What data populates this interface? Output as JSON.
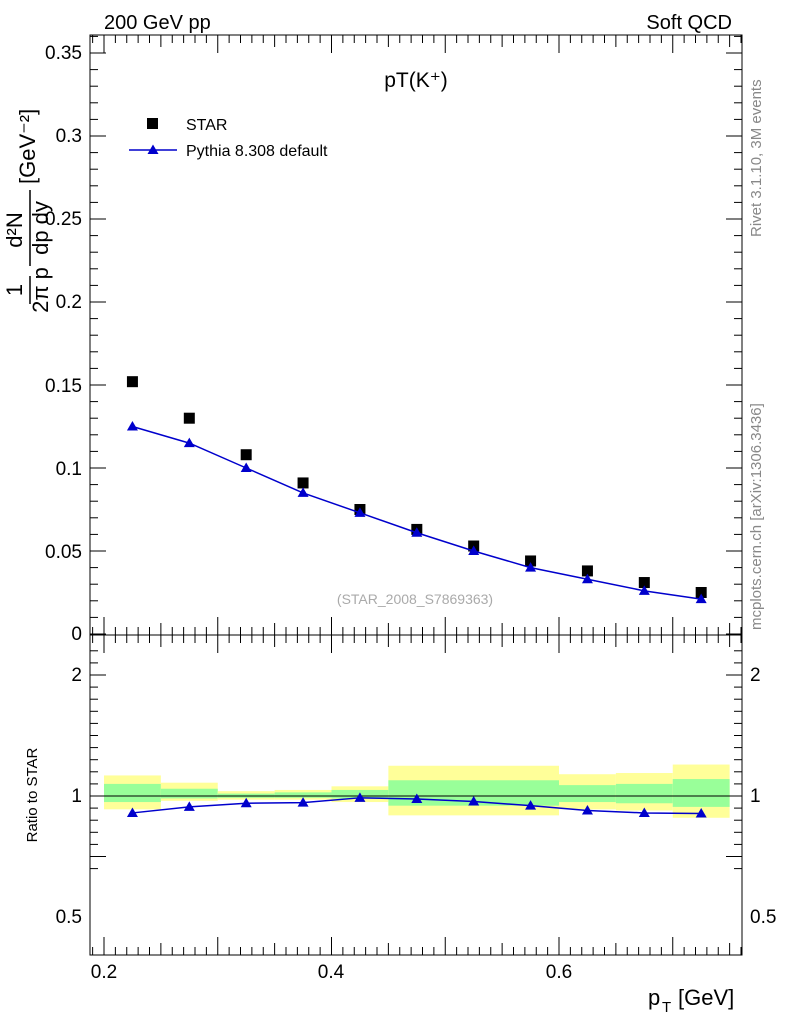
{
  "header": {
    "left": "200 GeV pp",
    "right": "Soft QCD"
  },
  "side_labels": {
    "rivet": "Rivet 3.1.10,  3M events",
    "mcplots": "mcplots.cern.ch [arXiv:1306.3436]"
  },
  "chart_data": [
    {
      "type": "scatter",
      "title": "pT(K⁺)",
      "watermark": "(STAR_2008_S7869363)",
      "ylabel_parts": {
        "lhs": "1",
        "frac_den": "2π p",
        "num": "d²N",
        "den": "dp  dy",
        "unit": "[GeV⁻²]"
      },
      "ylim": [
        0,
        0.36
      ],
      "xlim": [
        0.18,
        0.76
      ],
      "y_ticks": [
        "0",
        "0.05",
        "0.1",
        "0.15",
        "0.2",
        "0.25",
        "0.3",
        "0.35"
      ],
      "legend_position": "top-left",
      "series": [
        {
          "name": "STAR",
          "marker": "square",
          "color": "#000000",
          "x": [
            0.225,
            0.275,
            0.325,
            0.375,
            0.425,
            0.475,
            0.525,
            0.575,
            0.625,
            0.675,
            0.725
          ],
          "y": [
            0.152,
            0.13,
            0.108,
            0.091,
            0.075,
            0.063,
            0.053,
            0.044,
            0.038,
            0.031,
            0.025
          ]
        },
        {
          "name": "Pythia 8.308 default",
          "marker": "triangle",
          "color": "#0000cc",
          "x": [
            0.225,
            0.275,
            0.325,
            0.375,
            0.425,
            0.475,
            0.525,
            0.575,
            0.625,
            0.675,
            0.725
          ],
          "y": [
            0.125,
            0.115,
            0.1,
            0.085,
            0.073,
            0.061,
            0.05,
            0.04,
            0.033,
            0.026,
            0.021
          ]
        }
      ]
    },
    {
      "type": "scatter",
      "ylabel": "Ratio to STAR",
      "xlabel": "p",
      "xlabel_sub": "T",
      "xlabel_unit": "[GeV]",
      "ylim": [
        0.35,
        2.25
      ],
      "xlim": [
        0.18,
        0.76
      ],
      "y_ticks": [
        "0.5",
        "1",
        "2"
      ],
      "x_ticks": [
        "0.2",
        "0.4",
        "0.6"
      ],
      "bands": {
        "colors": {
          "outer": "#ffff99",
          "inner": "#99ff99"
        },
        "bins": [
          {
            "x": [
              0.2,
              0.25
            ],
            "outer": [
              0.89,
              1.17
            ],
            "inner": [
              0.95,
              1.1
            ]
          },
          {
            "x": [
              0.25,
              0.3
            ],
            "outer": [
              0.96,
              1.11
            ],
            "inner": [
              0.98,
              1.06
            ]
          },
          {
            "x": [
              0.3,
              0.35
            ],
            "outer": [
              0.97,
              1.04
            ],
            "inner": [
              0.985,
              1.02
            ]
          },
          {
            "x": [
              0.35,
              0.4
            ],
            "outer": [
              0.97,
              1.05
            ],
            "inner": [
              0.985,
              1.03
            ]
          },
          {
            "x": [
              0.4,
              0.45
            ],
            "outer": [
              0.95,
              1.08
            ],
            "inner": [
              0.98,
              1.05
            ]
          },
          {
            "x": [
              0.45,
              0.6
            ],
            "outer": [
              0.84,
              1.25
            ],
            "inner": [
              0.92,
              1.13
            ]
          },
          {
            "x": [
              0.6,
              0.65
            ],
            "outer": [
              0.89,
              1.18
            ],
            "inner": [
              0.95,
              1.09
            ]
          },
          {
            "x": [
              0.65,
              0.7
            ],
            "outer": [
              0.88,
              1.19
            ],
            "inner": [
              0.94,
              1.1
            ]
          },
          {
            "x": [
              0.7,
              0.75
            ],
            "outer": [
              0.82,
              1.26
            ],
            "inner": [
              0.91,
              1.14
            ]
          }
        ]
      },
      "series": [
        {
          "name": "Pythia 8.308 default",
          "marker": "triangle",
          "color": "#0000cc",
          "x": [
            0.225,
            0.275,
            0.325,
            0.375,
            0.425,
            0.475,
            0.525,
            0.575,
            0.625,
            0.675,
            0.725
          ],
          "y": [
            0.86,
            0.91,
            0.94,
            0.945,
            0.985,
            0.975,
            0.955,
            0.92,
            0.88,
            0.86,
            0.855
          ]
        }
      ]
    }
  ]
}
